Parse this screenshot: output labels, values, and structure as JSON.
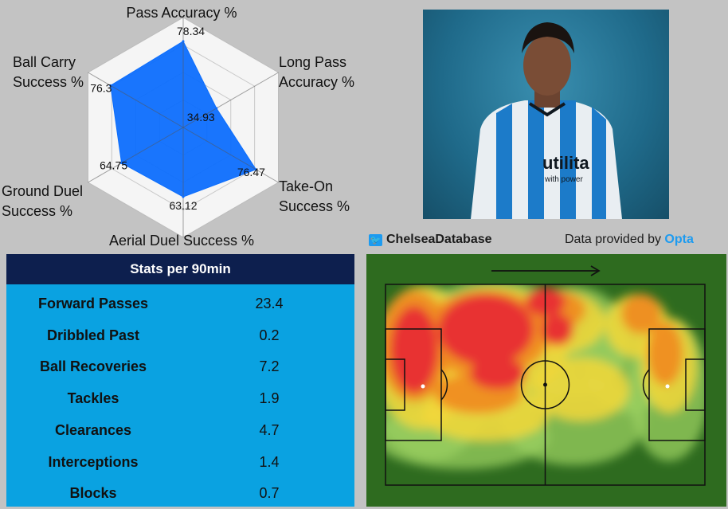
{
  "chart_data": [
    {
      "type": "radar",
      "categories": [
        "Pass Accuracy %",
        "Long Pass Accuracy %",
        "Take-On Success %",
        "Aerial Duel Success %",
        "Ground Duel Success %",
        "Ball Carry Success %"
      ],
      "label_lines": [
        [
          "Pass Accuracy %"
        ],
        [
          "Long Pass",
          "Accuracy %"
        ],
        [
          "Take-On",
          "Success %"
        ],
        [
          "Aerial Duel Success %"
        ],
        [
          "Ground Duel",
          "Success %"
        ],
        [
          "Ball Carry",
          "Success %"
        ]
      ],
      "values": [
        78.34,
        34.93,
        76.47,
        63.12,
        64.75,
        76.3
      ],
      "value_labels": [
        "78.34",
        "34.93",
        "76.47",
        "63.12",
        "64.75",
        "76.3"
      ],
      "range": [
        0,
        100
      ],
      "grid": true,
      "fill_color": "#0d6efd"
    },
    {
      "type": "heatmap",
      "direction_arrow": "right",
      "pitch_color": "#2e6b1f"
    }
  ],
  "credit": {
    "handle": "ChelseaDatabase",
    "provider_prefix": "Data provided by ",
    "provider_name": "Opta"
  },
  "photo": {
    "shirt_text": "utilita",
    "shirt_subtext": "with power"
  },
  "stats_table": {
    "title": "Stats per 90min",
    "rows": [
      {
        "label": "Forward Passes",
        "value": "23.4"
      },
      {
        "label": "Dribbled Past",
        "value": "0.2"
      },
      {
        "label": "Ball Recoveries",
        "value": "7.2"
      },
      {
        "label": "Tackles",
        "value": "1.9"
      },
      {
        "label": "Clearances",
        "value": "4.7"
      },
      {
        "label": "Interceptions",
        "value": "1.4"
      },
      {
        "label": "Blocks",
        "value": "0.7"
      }
    ]
  }
}
